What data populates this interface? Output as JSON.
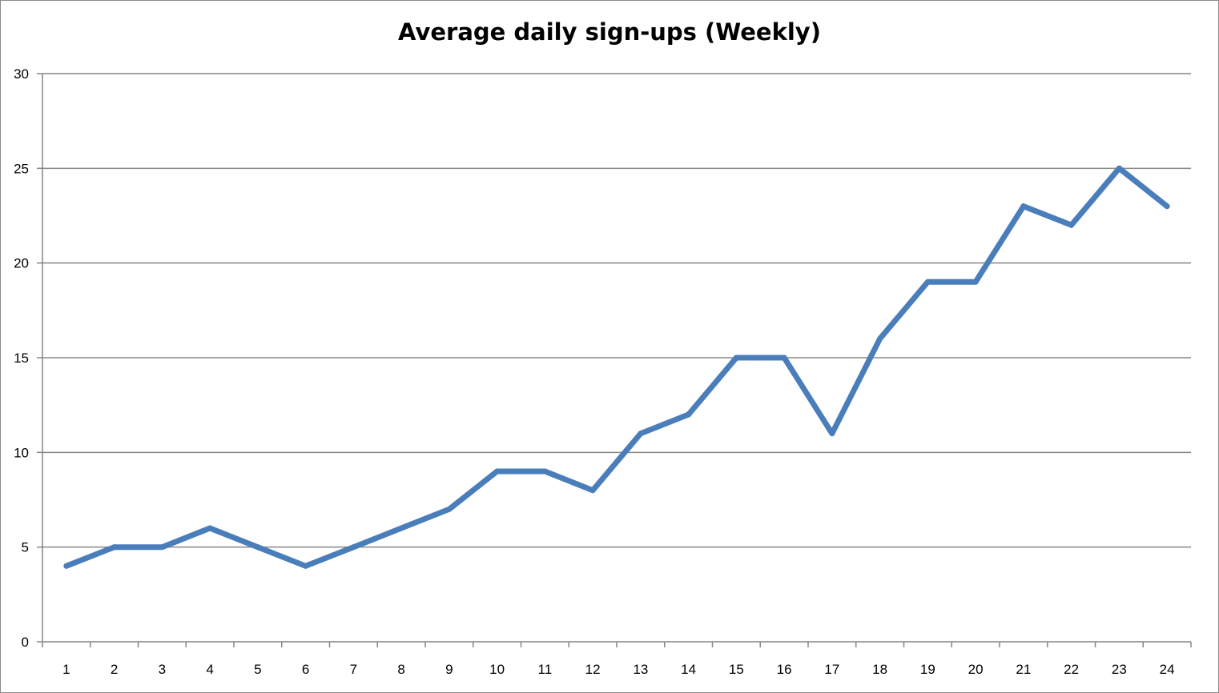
{
  "chart_data": {
    "type": "line",
    "title": "Average daily sign-ups (Weekly)",
    "xlabel": "",
    "ylabel": "",
    "categories": [
      "1",
      "2",
      "3",
      "4",
      "5",
      "6",
      "7",
      "8",
      "9",
      "10",
      "11",
      "12",
      "13",
      "14",
      "15",
      "16",
      "17",
      "18",
      "19",
      "20",
      "21",
      "22",
      "23",
      "24"
    ],
    "series": [
      {
        "values": [
          4,
          5,
          5,
          6,
          5,
          4,
          5,
          6,
          7,
          9,
          9,
          8,
          11,
          12,
          15,
          15,
          11,
          16,
          19,
          19,
          23,
          22,
          25,
          23
        ]
      }
    ],
    "ylim": [
      0,
      30
    ],
    "yticks": [
      "0",
      "5",
      "10",
      "15",
      "20",
      "25",
      "30"
    ],
    "grid": "horizontal",
    "legend": "none",
    "line_color": "#4a7ebb",
    "grid_color": "#868686"
  }
}
